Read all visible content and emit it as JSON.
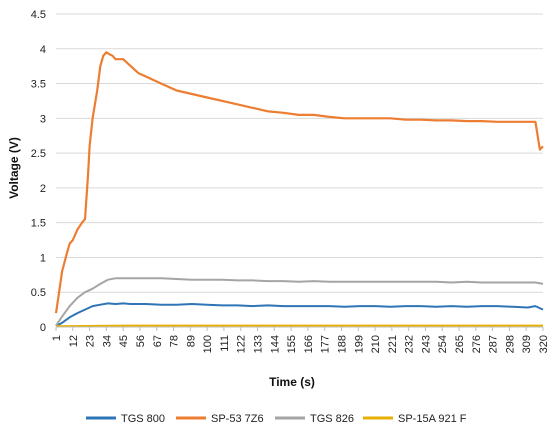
{
  "chart_data": {
    "type": "line",
    "title": "",
    "xlabel": "Time (s)",
    "ylabel": "Voltage (V)",
    "xlim": [
      1,
      320
    ],
    "ylim": [
      0,
      4.5
    ],
    "grid": true,
    "legend_position": "bottom",
    "y_ticks": [
      "0",
      "0.5",
      "1",
      "1.5",
      "2",
      "2.5",
      "3",
      "3.5",
      "4",
      "4.5"
    ],
    "x_ticks": [
      "1",
      "12",
      "23",
      "34",
      "45",
      "56",
      "67",
      "78",
      "89",
      "100",
      "111",
      "122",
      "133",
      "144",
      "155",
      "166",
      "177",
      "188",
      "199",
      "210",
      "221",
      "232",
      "243",
      "254",
      "265",
      "276",
      "287",
      "298",
      "309",
      "320"
    ],
    "series": [
      {
        "name": "TGS 800",
        "color": "#2e75b6",
        "x": [
          1,
          5,
          10,
          15,
          20,
          25,
          30,
          35,
          40,
          45,
          50,
          60,
          70,
          80,
          90,
          100,
          110,
          120,
          130,
          140,
          150,
          160,
          170,
          180,
          190,
          200,
          210,
          220,
          230,
          240,
          250,
          260,
          270,
          280,
          290,
          300,
          310,
          315,
          320
        ],
        "values": [
          0.01,
          0.06,
          0.14,
          0.2,
          0.25,
          0.3,
          0.32,
          0.34,
          0.33,
          0.34,
          0.33,
          0.33,
          0.32,
          0.32,
          0.33,
          0.32,
          0.31,
          0.31,
          0.3,
          0.31,
          0.3,
          0.3,
          0.3,
          0.3,
          0.29,
          0.3,
          0.3,
          0.29,
          0.3,
          0.3,
          0.29,
          0.3,
          0.29,
          0.3,
          0.3,
          0.29,
          0.28,
          0.3,
          0.25
        ]
      },
      {
        "name": "SP-53 7Z6",
        "color": "#ed7d31",
        "x": [
          1,
          3,
          5,
          8,
          10,
          12,
          15,
          18,
          20,
          22,
          23,
          25,
          28,
          30,
          32,
          34,
          36,
          38,
          40,
          45,
          50,
          55,
          60,
          70,
          80,
          90,
          100,
          110,
          120,
          130,
          140,
          150,
          160,
          170,
          180,
          190,
          200,
          210,
          220,
          230,
          240,
          250,
          260,
          270,
          280,
          290,
          300,
          310,
          315,
          318,
          320
        ],
        "values": [
          0.2,
          0.5,
          0.8,
          1.05,
          1.2,
          1.25,
          1.4,
          1.5,
          1.55,
          2.2,
          2.6,
          3.0,
          3.4,
          3.75,
          3.9,
          3.95,
          3.92,
          3.9,
          3.85,
          3.85,
          3.75,
          3.65,
          3.6,
          3.5,
          3.4,
          3.35,
          3.3,
          3.25,
          3.2,
          3.15,
          3.1,
          3.08,
          3.05,
          3.05,
          3.02,
          3.0,
          3.0,
          3.0,
          3.0,
          2.98,
          2.98,
          2.97,
          2.97,
          2.96,
          2.96,
          2.95,
          2.95,
          2.95,
          2.95,
          2.55,
          2.6
        ]
      },
      {
        "name": "TGS 826",
        "color": "#a5a5a5",
        "x": [
          1,
          5,
          10,
          15,
          20,
          25,
          30,
          35,
          40,
          45,
          50,
          60,
          70,
          80,
          90,
          100,
          110,
          120,
          130,
          140,
          150,
          160,
          170,
          180,
          190,
          200,
          210,
          220,
          230,
          240,
          250,
          260,
          270,
          280,
          290,
          300,
          310,
          315,
          320
        ],
        "values": [
          0.02,
          0.15,
          0.3,
          0.42,
          0.5,
          0.55,
          0.62,
          0.68,
          0.7,
          0.7,
          0.7,
          0.7,
          0.7,
          0.69,
          0.68,
          0.68,
          0.68,
          0.67,
          0.67,
          0.66,
          0.66,
          0.65,
          0.66,
          0.65,
          0.65,
          0.65,
          0.65,
          0.65,
          0.65,
          0.65,
          0.65,
          0.64,
          0.65,
          0.64,
          0.64,
          0.64,
          0.64,
          0.64,
          0.62
        ]
      },
      {
        "name": "SP-15A 921 F",
        "color": "#e6b000",
        "x": [
          1,
          50,
          100,
          150,
          200,
          250,
          300,
          320
        ],
        "values": [
          0.01,
          0.02,
          0.02,
          0.02,
          0.02,
          0.02,
          0.02,
          0.02
        ]
      }
    ]
  }
}
